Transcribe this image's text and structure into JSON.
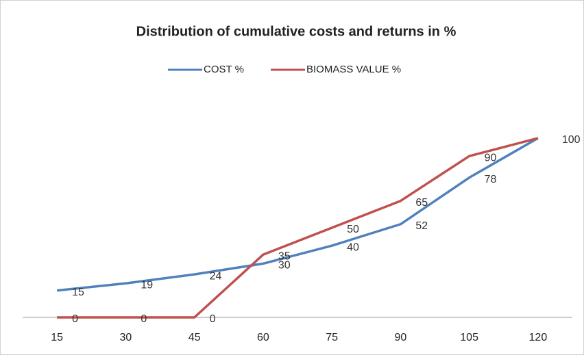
{
  "chart_data": {
    "type": "line",
    "title": "Distribution of cumulative costs and returns in %",
    "categories": [
      "15",
      "30",
      "45",
      "60",
      "75",
      "90",
      "105",
      "120"
    ],
    "series": [
      {
        "name": "COST %",
        "color": "#4f81bd",
        "values": [
          15,
          19,
          24,
          30,
          40,
          52,
          78,
          100
        ]
      },
      {
        "name": "BIOMASS VALUE %",
        "color": "#c0504d",
        "values": [
          0,
          0,
          0,
          35,
          50,
          65,
          90,
          100
        ]
      }
    ],
    "ylim": [
      0,
      100
    ],
    "legend": "top"
  }
}
